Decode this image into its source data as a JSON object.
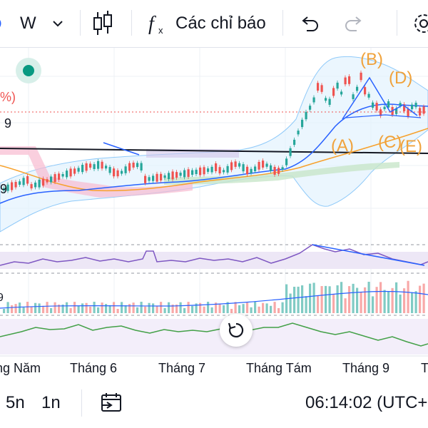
{
  "toolbar": {
    "interval": "W",
    "indicators_label": "Các chỉ báo"
  },
  "axis": {
    "left_labels": [
      "%)",
      "9",
      "9",
      "9"
    ],
    "months": [
      "ng Năm",
      "Tháng 6",
      "Tháng 7",
      "Tháng Tám",
      "Tháng 9",
      "T"
    ]
  },
  "wave_labels": [
    "(B)",
    "(D)",
    "(A)",
    "(C)",
    "(E)"
  ],
  "footer": {
    "range_5n": "5n",
    "range_1n": "1n",
    "clock": "06:14:02 (UTC+"
  },
  "colors": {
    "up": "#26a69a",
    "down": "#ef5350",
    "wave_label": "#f0a23b",
    "bollinger": "#2962ff",
    "ma": "#f7a12c",
    "trendline": "#131722",
    "rsi": "#7e57c2",
    "osc": "#43a047"
  },
  "icons": [
    "candles-icon",
    "fx-icon",
    "undo-icon",
    "redo-icon",
    "gear-icon",
    "calendar-range-icon",
    "reset-icon"
  ]
}
